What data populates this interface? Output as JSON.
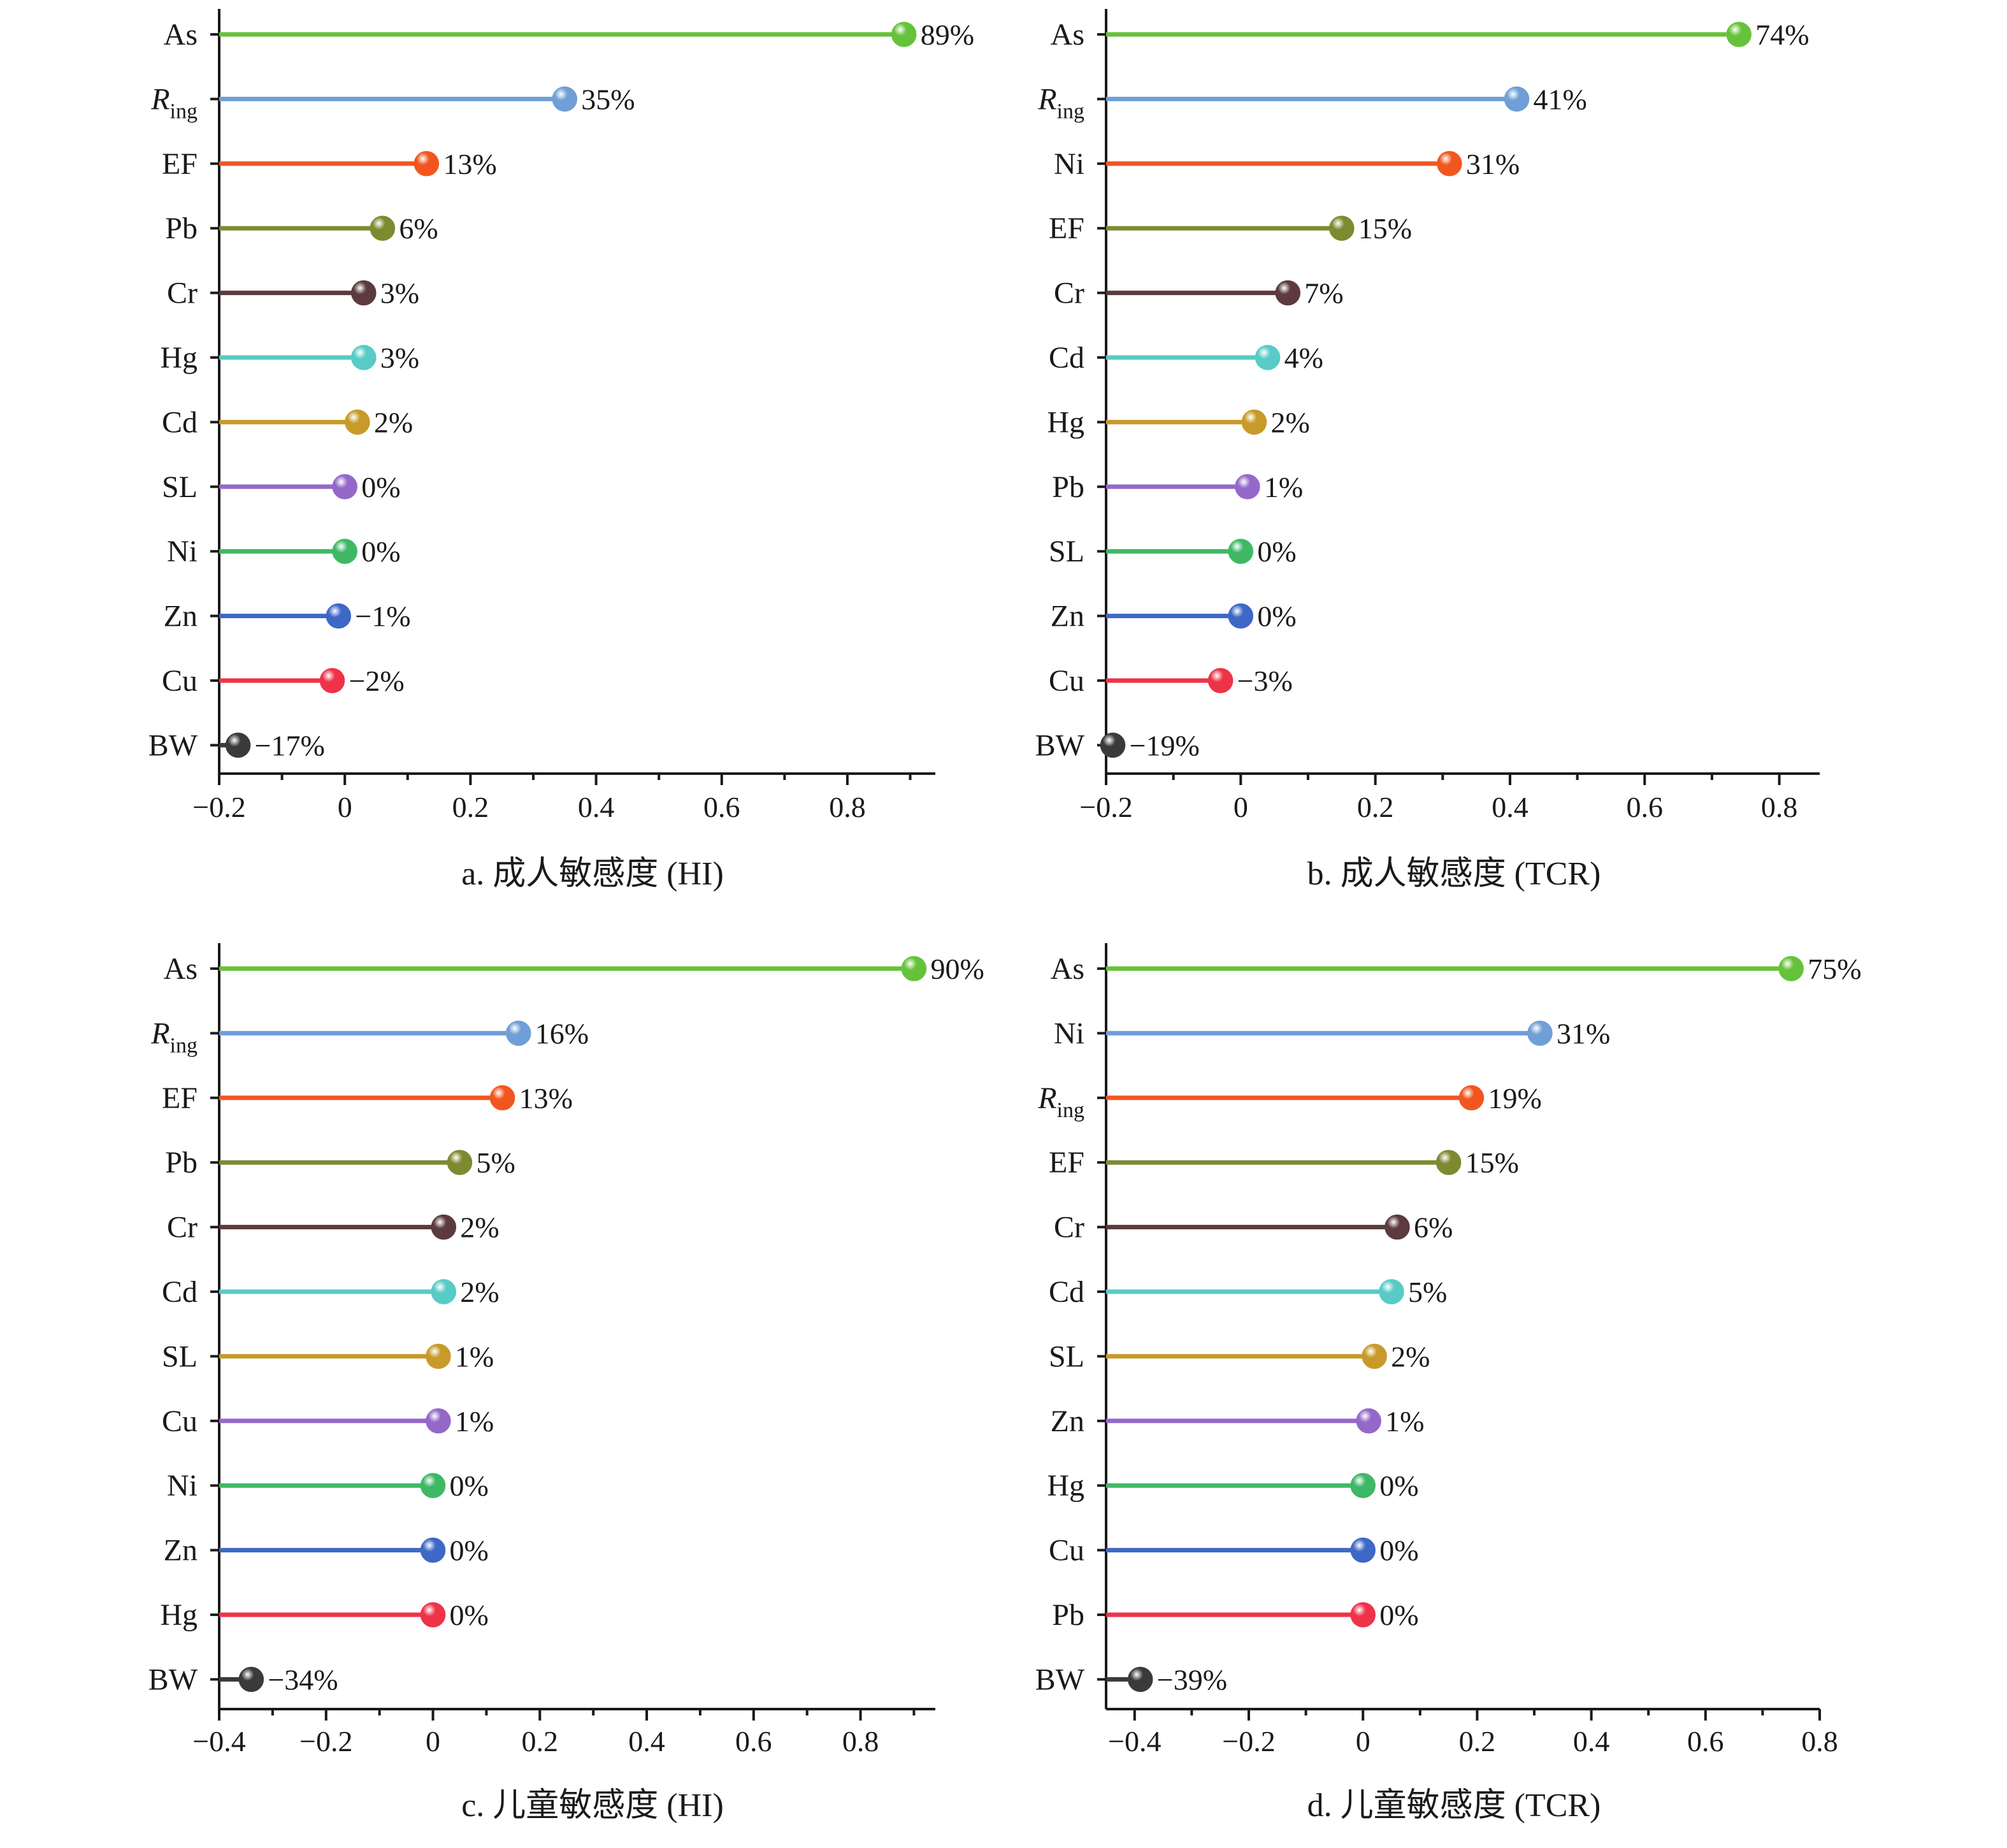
{
  "colors": [
    "#66c23a",
    "#6f9fd6",
    "#f2561f",
    "#7e8a2f",
    "#5c3a3e",
    "#58cbc6",
    "#c89a2a",
    "#9468c9",
    "#3fb865",
    "#3e68c6",
    "#ee3348",
    "#3a3a3a"
  ],
  "chart_data": [
    {
      "type": "lollipop",
      "caption": "a. 成人敏感度 (HI)",
      "xlim": [
        -0.2,
        0.94
      ],
      "ticks": [
        -0.2,
        0,
        0.2,
        0.4,
        0.6,
        0.8
      ],
      "tick_labels": [
        "−0.2",
        "0",
        "0.2",
        "0.4",
        "0.6",
        "0.8"
      ],
      "categories": [
        "As",
        "Ring",
        "EF",
        "Pb",
        "Cr",
        "Hg",
        "Cd",
        "SL",
        "Ni",
        "Zn",
        "Cu",
        "BW"
      ],
      "values": [
        0.89,
        0.35,
        0.13,
        0.06,
        0.03,
        0.03,
        0.02,
        0.0,
        0.0,
        -0.01,
        -0.02,
        -0.17
      ],
      "value_labels": [
        "89%",
        "35%",
        "13%",
        "6%",
        "3%",
        "3%",
        "2%",
        "0%",
        "0%",
        "−1%",
        "−2%",
        "−17%"
      ]
    },
    {
      "type": "lollipop",
      "caption": "b. 成人敏感度 (TCR)",
      "xlim": [
        -0.2,
        0.86
      ],
      "ticks": [
        -0.2,
        0,
        0.2,
        0.4,
        0.6,
        0.8
      ],
      "tick_labels": [
        "−0.2",
        "0",
        "0.2",
        "0.4",
        "0.6",
        "0.8"
      ],
      "categories": [
        "As",
        "Ring",
        "Ni",
        "EF",
        "Cr",
        "Cd",
        "Hg",
        "Pb",
        "SL",
        "Zn",
        "Cu",
        "BW"
      ],
      "values": [
        0.74,
        0.41,
        0.31,
        0.15,
        0.07,
        0.04,
        0.02,
        0.01,
        0.0,
        0.0,
        -0.03,
        -0.19
      ],
      "value_labels": [
        "74%",
        "41%",
        "31%",
        "15%",
        "7%",
        "4%",
        "2%",
        "1%",
        "0%",
        "0%",
        "−3%",
        "−19%"
      ]
    },
    {
      "type": "lollipop",
      "caption": "c. 儿童敏感度 (HI)",
      "xlim": [
        -0.4,
        0.94
      ],
      "ticks": [
        -0.4,
        -0.2,
        0,
        0.2,
        0.4,
        0.6,
        0.8
      ],
      "tick_labels": [
        "−0.4",
        "−0.2",
        "0",
        "0.2",
        "0.4",
        "0.6",
        "0.8"
      ],
      "categories": [
        "As",
        "Ring",
        "EF",
        "Pb",
        "Cr",
        "Cd",
        "SL",
        "Cu",
        "Ni",
        "Zn",
        "Hg",
        "BW"
      ],
      "values": [
        0.9,
        0.16,
        0.13,
        0.05,
        0.02,
        0.02,
        0.01,
        0.01,
        0.0,
        0.0,
        0.0,
        -0.34
      ],
      "value_labels": [
        "90%",
        "16%",
        "13%",
        "5%",
        "2%",
        "2%",
        "1%",
        "1%",
        "0%",
        "0%",
        "0%",
        "−34%"
      ]
    },
    {
      "type": "lollipop",
      "caption": "d. 儿童敏感度 (TCR)",
      "xlim": [
        -0.45,
        0.8
      ],
      "ticks": [
        -0.4,
        -0.2,
        0,
        0.2,
        0.4,
        0.6,
        0.8
      ],
      "tick_labels": [
        "−0.4",
        "−0.2",
        "0",
        "0.2",
        "0.4",
        "0.6",
        "0.8"
      ],
      "categories": [
        "As",
        "Ni",
        "Ring",
        "EF",
        "Cr",
        "Cd",
        "SL",
        "Zn",
        "Hg",
        "Cu",
        "Pb",
        "BW"
      ],
      "values": [
        0.75,
        0.31,
        0.19,
        0.15,
        0.06,
        0.05,
        0.02,
        0.01,
        0.0,
        0.0,
        0.0,
        -0.39
      ],
      "value_labels": [
        "75%",
        "31%",
        "19%",
        "15%",
        "6%",
        "5%",
        "2%",
        "1%",
        "0%",
        "0%",
        "0%",
        "−39%"
      ]
    }
  ]
}
